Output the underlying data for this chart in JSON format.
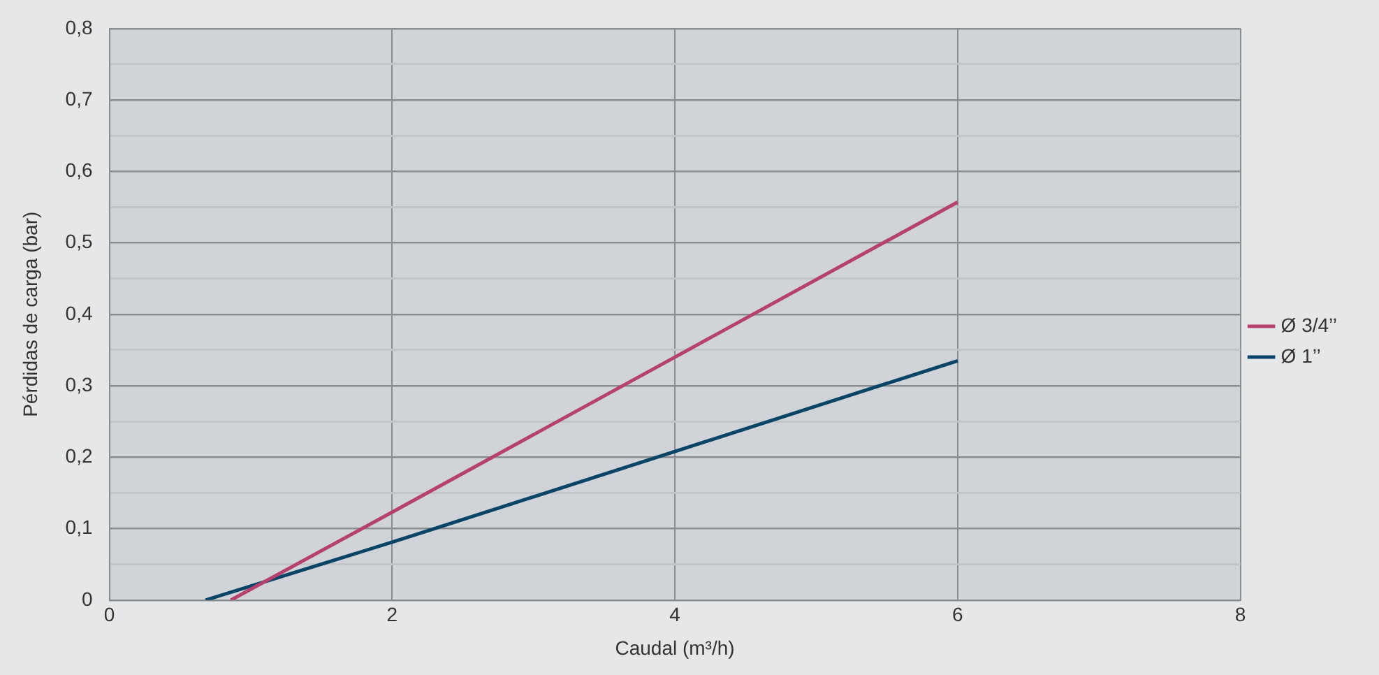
{
  "chart_data": {
    "type": "line",
    "xlabel": "Caudal (m³/h)",
    "ylabel": "Pérdidas de carga (bar)",
    "series": [
      {
        "name": "Ø 3/4’’",
        "color": "#b5426e",
        "x": [
          0.86,
          2,
          4,
          6
        ],
        "values": [
          0,
          0.123,
          0.34,
          0.557
        ]
      },
      {
        "name": "Ø 1’’",
        "color": "#0a4467",
        "x": [
          0.68,
          2,
          4,
          6
        ],
        "values": [
          0,
          0.081,
          0.208,
          0.335
        ]
      }
    ],
    "xlim": [
      0,
      8
    ],
    "xticks": [
      0,
      2,
      4,
      6,
      8
    ],
    "ylim": [
      0,
      0.8
    ],
    "yticks": [
      0,
      {
        "value": 0.05,
        "label": null
      },
      {
        "value": 0.1,
        "label": "0,1"
      },
      {
        "value": 0.15,
        "label": null
      },
      {
        "value": 0.2,
        "label": "0,2"
      },
      {
        "value": 0.25,
        "label": null
      },
      {
        "value": 0.3,
        "label": "0,3"
      },
      {
        "value": 0.35,
        "label": null
      },
      {
        "value": 0.4,
        "label": "0,4"
      },
      {
        "value": 0.45,
        "label": null
      },
      {
        "value": 0.5,
        "label": "0,5"
      },
      {
        "value": 0.55,
        "label": null
      },
      {
        "value": 0.6,
        "label": "0,6"
      },
      {
        "value": 0.65,
        "label": null
      },
      {
        "value": 0.7,
        "label": "0,7"
      },
      {
        "value": 0.75,
        "label": null
      },
      {
        "value": 0.8,
        "label": "0,8"
      }
    ],
    "grid": true,
    "legend": "right",
    "marker": "none",
    "line_style": "solid"
  }
}
